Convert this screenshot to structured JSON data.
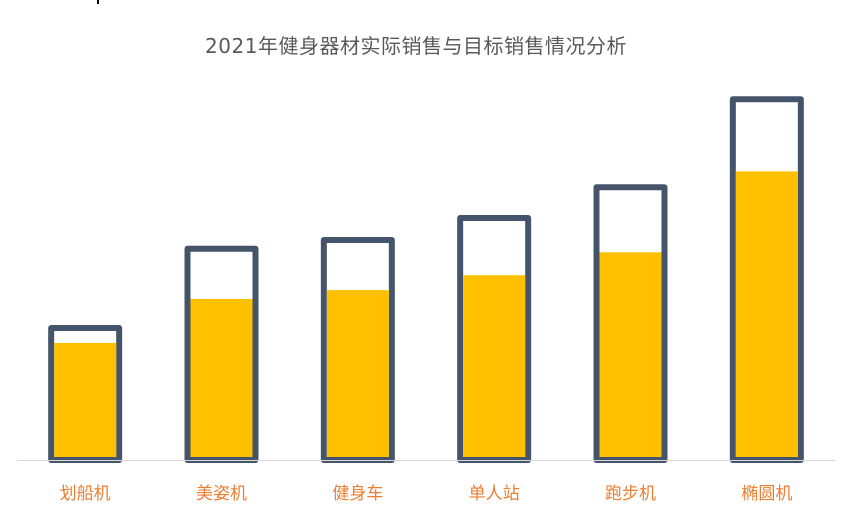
{
  "chart_data": {
    "type": "bar",
    "title": "2021年健身器材实际销售与目标销售情况分析",
    "categories": [
      "划船机",
      "美姿机",
      "健身车",
      "单人站",
      "跑步机",
      "椭圆机"
    ],
    "series": [
      {
        "values": [
          150,
          240,
          250,
          275,
          310,
          410
        ]
      },
      {
        "values": [
          133,
          183,
          193,
          210,
          236,
          328
        ]
      }
    ],
    "ylim": [
      0,
      410
    ],
    "grid": false,
    "legend": "none"
  },
  "colors": {
    "target_outline": "#44546A",
    "actual_fill": "#FFC000",
    "category_label": "#ED7D31",
    "title": "#595959",
    "axis": "#D9D9D9"
  }
}
